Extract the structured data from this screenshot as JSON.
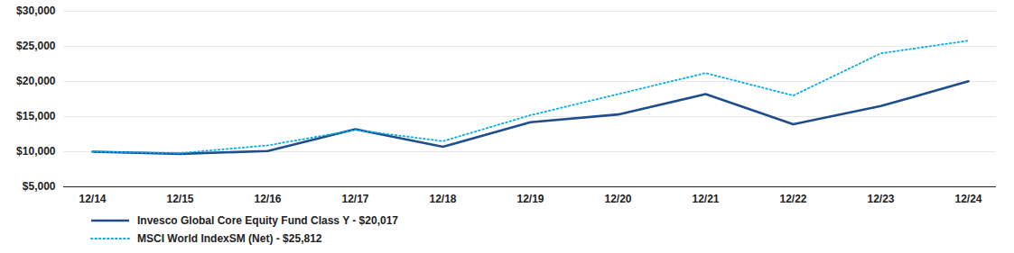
{
  "chart_data": {
    "type": "line",
    "categories": [
      "12/14",
      "12/15",
      "12/16",
      "12/17",
      "12/18",
      "12/19",
      "12/20",
      "12/21",
      "12/22",
      "12/23",
      "12/24"
    ],
    "series": [
      {
        "name": "Invesco Global Core Equity Fund Class Y - $20,017",
        "color": "#1f4e8c",
        "line_style": "solid",
        "values": [
          10000,
          9700,
          10100,
          13200,
          10700,
          14200,
          15300,
          18200,
          13900,
          16500,
          20017
        ]
      },
      {
        "name": "MSCI World IndexSM (Net) - $25,812",
        "color": "#00aeef",
        "line_style": "dotted",
        "values": [
          10000,
          9800,
          10900,
          13100,
          11500,
          15200,
          18200,
          21200,
          18000,
          24000,
          25812
        ]
      }
    ],
    "ylim": [
      5000,
      30000
    ],
    "yticks": [
      {
        "value": 5000,
        "label": "$5,000"
      },
      {
        "value": 10000,
        "label": "$10,000"
      },
      {
        "value": 15000,
        "label": "$15,000"
      },
      {
        "value": 20000,
        "label": "$20,000"
      },
      {
        "value": 25000,
        "label": "$25,000"
      },
      {
        "value": 30000,
        "label": "$30,000"
      }
    ],
    "grid": true,
    "legend": "lower left"
  }
}
